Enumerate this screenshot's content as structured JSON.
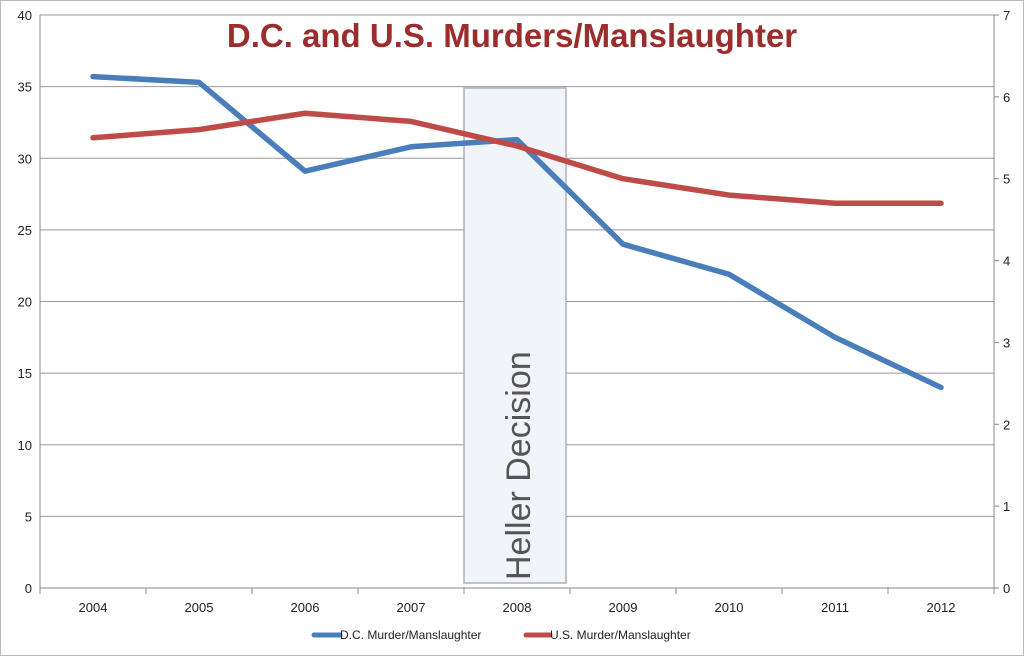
{
  "chart_data": {
    "type": "line",
    "title": "D.C. and U.S. Murders/Manslaughter",
    "categories": [
      "2004",
      "2005",
      "2006",
      "2007",
      "2008",
      "2009",
      "2010",
      "2011",
      "2012"
    ],
    "series": [
      {
        "name": "D.C. Murder/Manslaughter",
        "axis": "left",
        "color": "#4a7ebb",
        "values": [
          35.7,
          35.3,
          29.1,
          30.8,
          31.3,
          24.0,
          21.9,
          17.5,
          14.0
        ]
      },
      {
        "name": "U.S. Murder/Manslaughter",
        "axis": "right",
        "color": "#be4b48",
        "values": [
          5.5,
          5.6,
          5.8,
          5.7,
          5.4,
          5.0,
          4.8,
          4.7,
          4.7
        ]
      }
    ],
    "ylim_left": [
      0,
      40
    ],
    "yticks_left": [
      "0",
      "5",
      "10",
      "15",
      "20",
      "25",
      "30",
      "35",
      "40"
    ],
    "ylim_right": [
      0,
      7
    ],
    "yticks_right": [
      "0",
      "1",
      "2",
      "3",
      "4",
      "5",
      "6",
      "7"
    ],
    "grid": true,
    "legend_position": "bottom",
    "annotation": {
      "text": "Heller Decision",
      "category": "2008"
    }
  }
}
